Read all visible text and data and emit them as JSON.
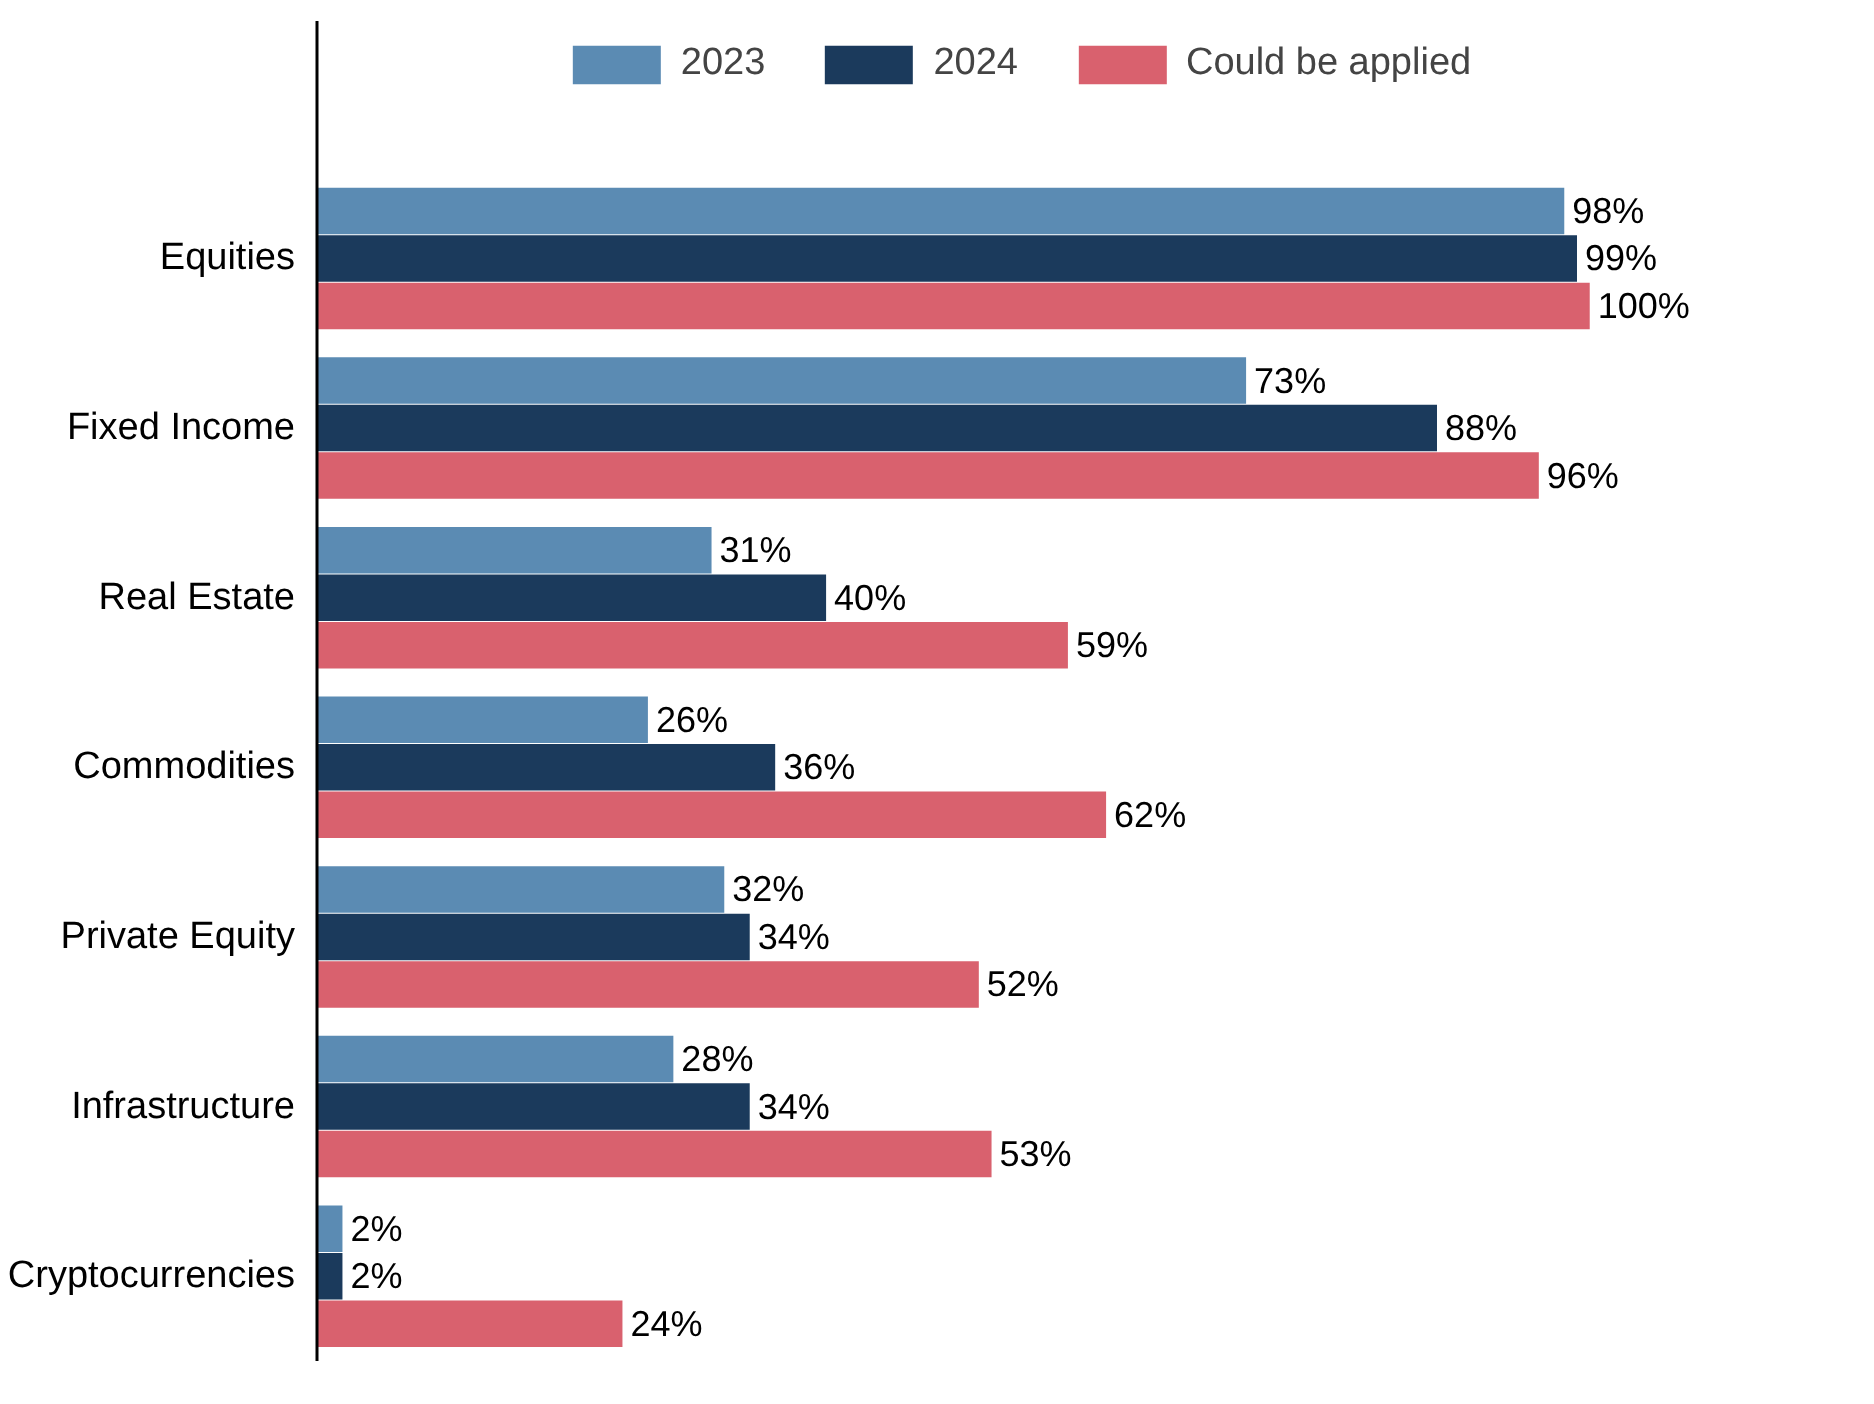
{
  "chart_data": {
    "type": "bar",
    "orientation": "horizontal",
    "categories": [
      "Equities",
      "Fixed Income",
      "Real Estate",
      "Commodities",
      "Private Equity",
      "Infrastructure",
      "Cryptocurrencies"
    ],
    "series": [
      {
        "name": "2023",
        "color": "#5b8bb3",
        "values": [
          98,
          73,
          31,
          26,
          32,
          28,
          2
        ],
        "value_labels": [
          "98%",
          "73%",
          "31%",
          "26%",
          "32%",
          "28%",
          "2%"
        ]
      },
      {
        "name": "2024",
        "color": "#1b3a5c",
        "values": [
          99,
          88,
          40,
          36,
          34,
          34,
          2
        ],
        "value_labels": [
          "99%",
          "88%",
          "40%",
          "36%",
          "34%",
          "34%",
          "2%"
        ]
      },
      {
        "name": "Could be applied",
        "color": "#d9616e",
        "values": [
          100,
          96,
          59,
          62,
          52,
          53,
          24
        ],
        "value_labels": [
          "100%",
          "96%",
          "59%",
          "62%",
          "52%",
          "53%",
          "24%"
        ]
      }
    ],
    "legend": "top",
    "tick_labels": "y",
    "grid": false
  }
}
